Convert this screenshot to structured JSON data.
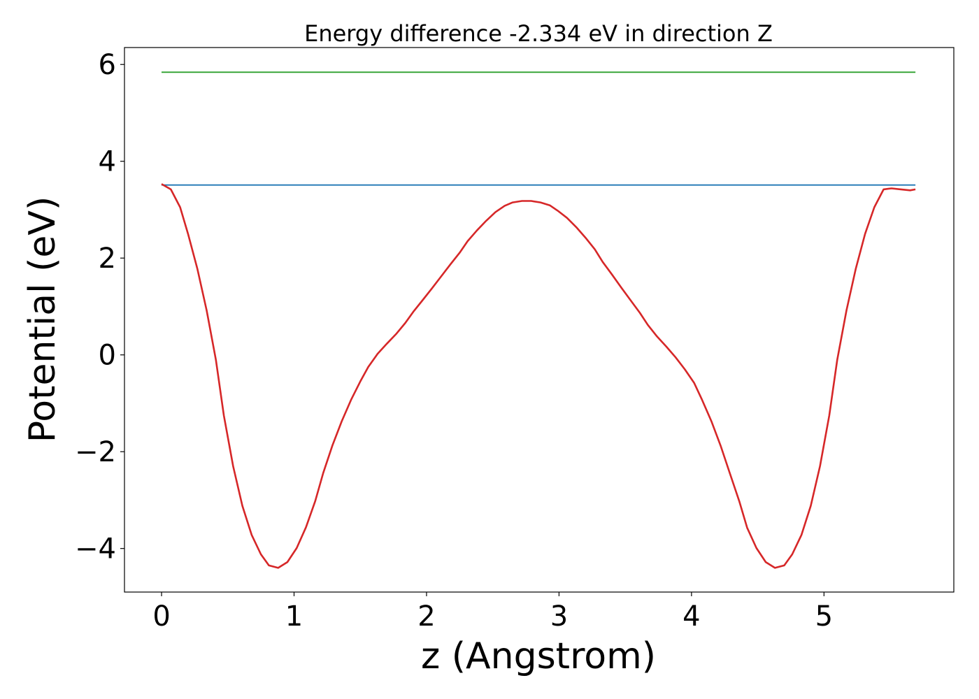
{
  "chart_data": {
    "type": "line",
    "title": "Energy difference -2.334 eV in direction Z",
    "xlabel": "z (Angstrom)",
    "ylabel": "Potential (eV)",
    "xlim": [
      -0.28,
      5.98
    ],
    "ylim": [
      -4.9,
      6.35
    ],
    "xticks": [
      0,
      1,
      2,
      3,
      4,
      5
    ],
    "xtick_labels": [
      "0",
      "1",
      "2",
      "3",
      "4",
      "5"
    ],
    "yticks": [
      -4,
      -2,
      0,
      2,
      4,
      6
    ],
    "ytick_labels": [
      "−4",
      "−2",
      "0",
      "2",
      "4",
      "6"
    ],
    "grid": false,
    "legend": "none",
    "series": [
      {
        "color": "#2ca02c",
        "x": [
          0,
          5.69
        ],
        "y": [
          5.84,
          5.84
        ]
      },
      {
        "color": "#1f77b4",
        "x": [
          0,
          5.69
        ],
        "y": [
          3.51,
          3.51
        ]
      },
      {
        "color": "#d62728",
        "x": [
          0,
          0.07,
          0.14,
          0.2,
          0.27,
          0.34,
          0.41,
          0.47,
          0.54,
          0.61,
          0.68,
          0.75,
          0.81,
          0.88,
          0.95,
          1.02,
          1.09,
          1.16,
          1.22,
          1.29,
          1.36,
          1.43,
          1.5,
          1.56,
          1.63,
          1.7,
          1.77,
          1.84,
          1.9,
          1.97,
          2.04,
          2.11,
          2.18,
          2.25,
          2.31,
          2.38,
          2.45,
          2.52,
          2.59,
          2.65,
          2.72,
          2.79,
          2.86,
          2.93,
          2.99,
          3.06,
          3.13,
          3.2,
          3.27,
          3.33,
          3.4,
          3.47,
          3.54,
          3.61,
          3.67,
          3.74,
          3.81,
          3.88,
          3.95,
          4.02,
          4.08,
          4.15,
          4.22,
          4.29,
          4.36,
          4.42,
          4.49,
          4.56,
          4.63,
          4.7,
          4.76,
          4.83,
          4.9,
          4.97,
          5.04,
          5.1,
          5.17,
          5.24,
          5.31,
          5.38,
          5.45,
          5.51,
          5.58,
          5.65,
          5.69
        ],
        "y": [
          3.53,
          3.42,
          3.05,
          2.5,
          1.78,
          0.92,
          -0.1,
          -1.25,
          -2.3,
          -3.12,
          -3.72,
          -4.12,
          -4.35,
          -4.4,
          -4.28,
          -3.99,
          -3.56,
          -3.02,
          -2.44,
          -1.87,
          -1.37,
          -0.93,
          -0.55,
          -0.25,
          0.02,
          0.23,
          0.43,
          0.66,
          0.89,
          1.13,
          1.37,
          1.62,
          1.87,
          2.11,
          2.35,
          2.57,
          2.77,
          2.95,
          3.08,
          3.15,
          3.18,
          3.18,
          3.15,
          3.09,
          2.98,
          2.83,
          2.64,
          2.42,
          2.18,
          1.92,
          1.66,
          1.39,
          1.13,
          0.87,
          0.62,
          0.38,
          0.17,
          -0.05,
          -0.3,
          -0.58,
          -0.93,
          -1.37,
          -1.88,
          -2.45,
          -3.02,
          -3.57,
          -3.99,
          -4.28,
          -4.4,
          -4.35,
          -4.12,
          -3.72,
          -3.12,
          -2.3,
          -1.25,
          -0.1,
          0.92,
          1.78,
          2.5,
          3.05,
          3.42,
          3.44,
          3.42,
          3.4,
          3.42
        ]
      }
    ]
  }
}
